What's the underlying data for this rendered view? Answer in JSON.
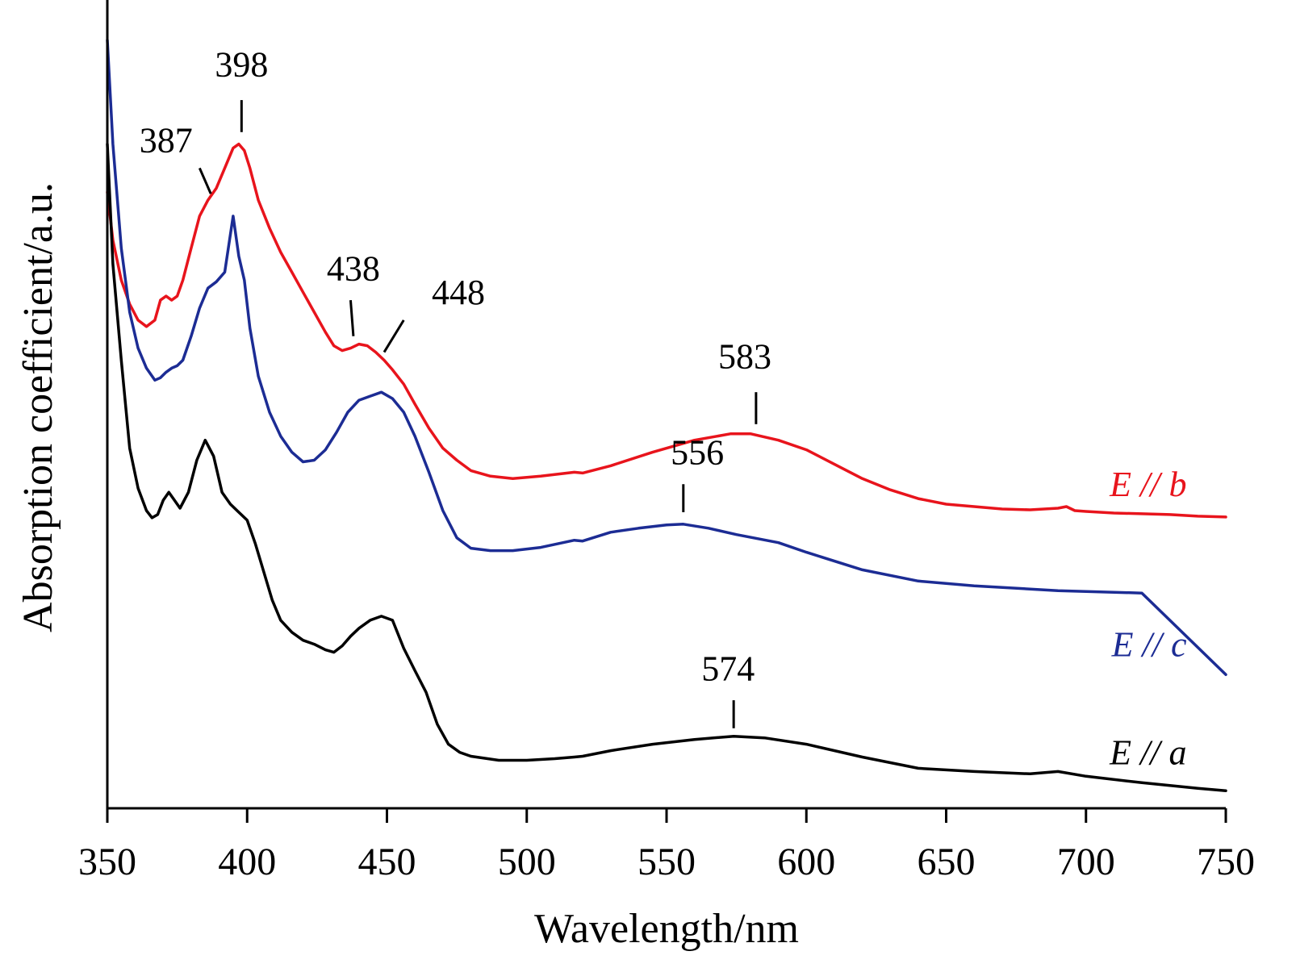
{
  "chart_data": {
    "type": "line",
    "xlabel": "Wavelength/nm",
    "ylabel": "Absorption coefficient/a.u.",
    "xlim": [
      350,
      750
    ],
    "ylim": [
      0,
      10
    ],
    "xticks": [
      "350",
      "400",
      "450",
      "500",
      "550",
      "600",
      "650",
      "700",
      "750"
    ],
    "y_tick_labels": false,
    "grid": false,
    "series": [
      {
        "name": "E // b",
        "color": "#e8141c",
        "x": [
          350,
          352,
          355,
          358,
          361,
          364,
          367,
          369,
          371,
          373,
          375,
          377,
          380,
          383,
          386,
          389,
          392,
          395,
          397,
          399,
          401,
          404,
          408,
          412,
          416,
          420,
          424,
          428,
          431,
          434,
          437,
          440,
          443,
          446,
          449,
          452,
          456,
          460,
          465,
          470,
          475,
          480,
          487,
          495,
          505,
          517,
          520,
          530,
          545,
          560,
          573,
          580,
          590,
          600,
          610,
          620,
          630,
          640,
          650,
          660,
          670,
          680,
          690,
          693,
          696,
          700,
          710,
          720,
          730,
          740,
          750
        ],
        "y": [
          7.7,
          7.1,
          6.6,
          6.3,
          6.1,
          6.02,
          6.1,
          6.35,
          6.4,
          6.35,
          6.4,
          6.6,
          7.0,
          7.4,
          7.6,
          7.75,
          8.0,
          8.25,
          8.3,
          8.22,
          8.0,
          7.6,
          7.25,
          6.95,
          6.7,
          6.45,
          6.2,
          5.95,
          5.78,
          5.72,
          5.75,
          5.8,
          5.78,
          5.7,
          5.6,
          5.48,
          5.3,
          5.05,
          4.75,
          4.5,
          4.35,
          4.22,
          4.15,
          4.12,
          4.15,
          4.2,
          4.19,
          4.28,
          4.45,
          4.6,
          4.68,
          4.68,
          4.6,
          4.48,
          4.3,
          4.12,
          3.98,
          3.87,
          3.8,
          3.77,
          3.74,
          3.73,
          3.75,
          3.77,
          3.72,
          3.71,
          3.69,
          3.68,
          3.67,
          3.65,
          3.64
        ]
      },
      {
        "name": "E // c",
        "color": "#1c2c94",
        "x": [
          350,
          352,
          355,
          358,
          361,
          364,
          367,
          369,
          371,
          373,
          375,
          377,
          380,
          383,
          386,
          389,
          392,
          395,
          397,
          399,
          401,
          404,
          408,
          412,
          416,
          420,
          424,
          428,
          432,
          436,
          440,
          444,
          448,
          452,
          456,
          460,
          465,
          470,
          475,
          480,
          487,
          495,
          505,
          517,
          520,
          530,
          540,
          550,
          556,
          565,
          575,
          590,
          600,
          620,
          640,
          660,
          680,
          690,
          700,
          720,
          750
        ],
        "y": [
          9.6,
          8.3,
          7.0,
          6.2,
          5.75,
          5.5,
          5.35,
          5.38,
          5.45,
          5.5,
          5.53,
          5.6,
          5.9,
          6.25,
          6.5,
          6.58,
          6.7,
          7.4,
          6.9,
          6.6,
          6.0,
          5.4,
          4.95,
          4.65,
          4.45,
          4.33,
          4.35,
          4.48,
          4.7,
          4.95,
          5.1,
          5.15,
          5.2,
          5.12,
          4.95,
          4.65,
          4.2,
          3.72,
          3.38,
          3.25,
          3.22,
          3.22,
          3.26,
          3.35,
          3.34,
          3.45,
          3.5,
          3.54,
          3.55,
          3.5,
          3.42,
          3.32,
          3.2,
          2.98,
          2.84,
          2.78,
          2.74,
          2.72,
          2.71,
          2.69,
          1.67
        ]
      },
      {
        "name": "E // a",
        "color": "#000000",
        "x": [
          350,
          352,
          355,
          358,
          361,
          364,
          366,
          368,
          370,
          372,
          374,
          376,
          379,
          382,
          385,
          388,
          391,
          394,
          397,
          400,
          403,
          406,
          409,
          412,
          416,
          420,
          424,
          428,
          431,
          434,
          437,
          440,
          444,
          448,
          452,
          456,
          460,
          464,
          468,
          472,
          476,
          480,
          490,
          500,
          510,
          517,
          520,
          530,
          545,
          560,
          574,
          585,
          600,
          620,
          640,
          660,
          680,
          690,
          700,
          720,
          740,
          750
        ],
        "y": [
          8.3,
          6.8,
          5.6,
          4.5,
          4.0,
          3.72,
          3.63,
          3.67,
          3.85,
          3.95,
          3.85,
          3.75,
          3.95,
          4.35,
          4.6,
          4.4,
          3.95,
          3.8,
          3.7,
          3.6,
          3.3,
          2.95,
          2.6,
          2.35,
          2.2,
          2.1,
          2.05,
          1.98,
          1.95,
          2.03,
          2.15,
          2.25,
          2.35,
          2.4,
          2.35,
          2.0,
          1.72,
          1.45,
          1.05,
          0.8,
          0.7,
          0.65,
          0.6,
          0.6,
          0.62,
          0.64,
          0.65,
          0.72,
          0.8,
          0.86,
          0.9,
          0.88,
          0.8,
          0.64,
          0.5,
          0.46,
          0.43,
          0.46,
          0.4,
          0.32,
          0.25,
          0.22
        ]
      }
    ],
    "annotations": [
      {
        "text": "398",
        "peak_x": 398,
        "peak_y": 8.45,
        "tick_to_x": 398,
        "tick_to_y": 8.85,
        "text_x": 398,
        "text_y": 9.15,
        "anchor": "middle"
      },
      {
        "text": "387",
        "peak_x": 387,
        "peak_y": 7.68,
        "tick_to_x": 383,
        "tick_to_y": 8.0,
        "text_x": 371,
        "text_y": 8.2,
        "anchor": "middle"
      },
      {
        "text": "438",
        "peak_x": 438,
        "peak_y": 5.9,
        "tick_to_x": 437,
        "tick_to_y": 6.35,
        "text_x": 438,
        "text_y": 6.6,
        "anchor": "middle"
      },
      {
        "text": "448",
        "peak_x": 449,
        "peak_y": 5.7,
        "tick_to_x": 456,
        "tick_to_y": 6.1,
        "text_x": 466,
        "text_y": 6.3,
        "anchor": "start"
      },
      {
        "text": "583",
        "peak_x": 582,
        "peak_y": 4.8,
        "tick_to_x": 582,
        "tick_to_y": 5.2,
        "text_x": 578,
        "text_y": 5.5,
        "anchor": "middle"
      },
      {
        "text": "556",
        "peak_x": 556,
        "peak_y": 3.7,
        "tick_to_x": 556,
        "tick_to_y": 4.05,
        "text_x": 561,
        "text_y": 4.3,
        "anchor": "middle"
      },
      {
        "text": "574",
        "peak_x": 574,
        "peak_y": 1.0,
        "tick_to_x": 574,
        "tick_to_y": 1.35,
        "text_x": 572,
        "text_y": 1.6,
        "anchor": "middle"
      }
    ],
    "series_labels": [
      {
        "text": "E // b",
        "color": "#e8141c",
        "x": 736,
        "y": 3.9
      },
      {
        "text": "E // c",
        "color": "#1c2c94",
        "x": 736,
        "y": 1.9
      },
      {
        "text": "E // a",
        "color": "#000000",
        "x": 736,
        "y": 0.55
      }
    ]
  }
}
